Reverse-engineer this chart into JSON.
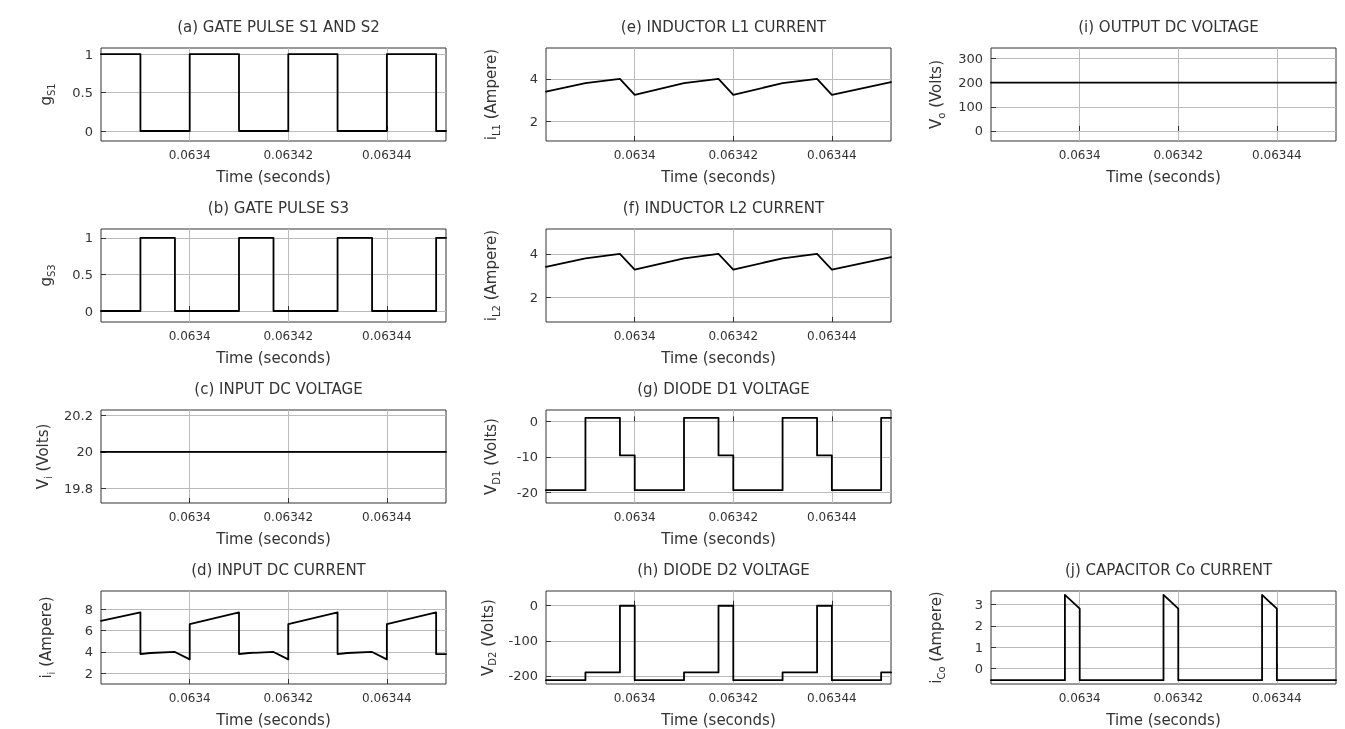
{
  "chart_data": [
    {
      "type": "line",
      "title": "(a) GATE PULSE S1 AND S2",
      "xlabel": "Time (seconds)",
      "ylabel": "g$_{S1}$",
      "color": "#000000",
      "grid": true,
      "xlim": [
        0.063382,
        0.063452
      ],
      "xticks": [
        0.0634,
        0.06342,
        0.06344
      ],
      "ylim": [
        -0.13,
        1.08
      ],
      "yticks": [
        0,
        0.5,
        1
      ],
      "x": [
        0.063382,
        0.06339,
        0.06339,
        0.0634,
        0.0634,
        0.06341,
        0.06341,
        0.06342,
        0.06342,
        0.06343,
        0.06343,
        0.06344,
        0.06344,
        0.06345,
        0.06345,
        0.063452
      ],
      "values": [
        1,
        1,
        0,
        0,
        1,
        1,
        0,
        0,
        1,
        1,
        0,
        0,
        1,
        1,
        0,
        0
      ]
    },
    {
      "type": "line",
      "title": "(b) GATE PULSE S3",
      "xlabel": "Time (seconds)",
      "ylabel": "g$_{S3}$",
      "color": "#000000",
      "grid": true,
      "xlim": [
        0.063382,
        0.063452
      ],
      "xticks": [
        0.0634,
        0.06342,
        0.06344
      ],
      "ylim": [
        -0.15,
        1.12
      ],
      "yticks": [
        0,
        0.5,
        1
      ],
      "x": [
        0.063382,
        0.06339,
        0.06339,
        0.063397,
        0.063397,
        0.06341,
        0.06341,
        0.063417,
        0.063417,
        0.06343,
        0.06343,
        0.063437,
        0.063437,
        0.06345,
        0.06345,
        0.063452
      ],
      "values": [
        0,
        0,
        1,
        1,
        0,
        0,
        1,
        1,
        0,
        0,
        1,
        1,
        0,
        0,
        1,
        1
      ]
    },
    {
      "type": "line",
      "title": "(c) INPUT DC VOLTAGE",
      "xlabel": "Time (seconds)",
      "ylabel": "V$_{i}$ (Volts)",
      "color": "#000000",
      "grid": true,
      "xlim": [
        0.063382,
        0.063452
      ],
      "xticks": [
        0.0634,
        0.06342,
        0.06344
      ],
      "ylim": [
        19.72,
        20.23
      ],
      "yticks": [
        19.8,
        20,
        20.2
      ],
      "x": [
        0.063382,
        0.063452
      ],
      "values": [
        20,
        20
      ]
    },
    {
      "type": "line",
      "title": "(d) INPUT DC CURRENT",
      "xlabel": "Time (seconds)",
      "ylabel": "i$_{i}$ (Ampere)",
      "color": "#000000",
      "grid": true,
      "xlim": [
        0.063382,
        0.063452
      ],
      "xticks": [
        0.0634,
        0.06342,
        0.06344
      ],
      "ylim": [
        1.0,
        9.7
      ],
      "yticks": [
        2,
        4,
        6,
        8
      ],
      "x": [
        0.063382,
        0.06339,
        0.06339,
        0.063392,
        0.063397,
        0.0634,
        0.0634,
        0.06341,
        0.06341,
        0.063412,
        0.063417,
        0.06342,
        0.06342,
        0.06343,
        0.06343,
        0.063432,
        0.063437,
        0.06344,
        0.06344,
        0.06345,
        0.06345,
        0.063452
      ],
      "values": [
        6.9,
        7.7,
        3.8,
        3.9,
        4.0,
        3.3,
        6.6,
        7.7,
        3.8,
        3.9,
        4.0,
        3.3,
        6.6,
        7.7,
        3.8,
        3.9,
        4.0,
        3.3,
        6.6,
        7.7,
        3.8,
        3.8
      ]
    },
    {
      "type": "line",
      "title": "(e) INDUCTOR L1 CURRENT",
      "xlabel": "Time (seconds)",
      "ylabel": "i$_{L1}$ (Ampere)",
      "color": "#000000",
      "grid": true,
      "xlim": [
        0.063382,
        0.063452
      ],
      "xticks": [
        0.0634,
        0.06342,
        0.06344
      ],
      "ylim": [
        1.07,
        5.46
      ],
      "yticks": [
        2,
        4
      ],
      "x": [
        0.063382,
        0.06339,
        0.063397,
        0.0634,
        0.06341,
        0.063417,
        0.06342,
        0.06343,
        0.063437,
        0.06344,
        0.063452
      ],
      "values": [
        3.4,
        3.8,
        4.0,
        3.25,
        3.8,
        4.0,
        3.25,
        3.8,
        4.0,
        3.25,
        3.85
      ]
    },
    {
      "type": "line",
      "title": "(f) INDUCTOR L2 CURRENT",
      "xlabel": "Time (seconds)",
      "ylabel": "i$_{L2}$ (Ampere)",
      "color": "#000000",
      "grid": true,
      "xlim": [
        0.063382,
        0.063452
      ],
      "xticks": [
        0.0634,
        0.06342,
        0.06344
      ],
      "ylim": [
        0.84,
        5.16
      ],
      "yticks": [
        2,
        4
      ],
      "x": [
        0.063382,
        0.06339,
        0.063397,
        0.0634,
        0.06341,
        0.063417,
        0.06342,
        0.06343,
        0.063437,
        0.06344,
        0.063452
      ],
      "values": [
        3.4,
        3.8,
        4.0,
        3.27,
        3.8,
        4.0,
        3.27,
        3.8,
        4.0,
        3.27,
        3.85
      ]
    },
    {
      "type": "line",
      "title": "(g) DIODE D1 VOLTAGE",
      "xlabel": "Time (seconds)",
      "ylabel": "V$_{D1}$ (Volts)",
      "color": "#000000",
      "grid": true,
      "xlim": [
        0.063382,
        0.063452
      ],
      "xticks": [
        0.0634,
        0.06342,
        0.06344
      ],
      "ylim": [
        -23,
        3.2
      ],
      "yticks": [
        -20,
        -10,
        0
      ],
      "x": [
        0.063382,
        0.06339,
        0.06339,
        0.063397,
        0.063397,
        0.0634,
        0.0634,
        0.06341,
        0.06341,
        0.063417,
        0.063417,
        0.06342,
        0.06342,
        0.06343,
        0.06343,
        0.063437,
        0.063437,
        0.06344,
        0.06344,
        0.06345,
        0.06345,
        0.063452
      ],
      "values": [
        -19.4,
        -19.4,
        1,
        1,
        -9.6,
        -9.6,
        -19.4,
        -19.4,
        1,
        1,
        -9.6,
        -9.6,
        -19.4,
        -19.4,
        1,
        1,
        -9.6,
        -9.6,
        -19.4,
        -19.4,
        1,
        1
      ]
    },
    {
      "type": "line",
      "title": "(h) DIODE D2 VOLTAGE",
      "xlabel": "Time (seconds)",
      "ylabel": "V$_{D2}$ (Volts)",
      "color": "#000000",
      "grid": true,
      "xlim": [
        0.063382,
        0.063452
      ],
      "xticks": [
        0.0634,
        0.06342,
        0.06344
      ],
      "ylim": [
        -223,
        42
      ],
      "yticks": [
        -200,
        -100,
        0
      ],
      "x": [
        0.063382,
        0.06339,
        0.06339,
        0.063397,
        0.063397,
        0.0634,
        0.0634,
        0.06341,
        0.06341,
        0.063417,
        0.063417,
        0.06342,
        0.06342,
        0.06343,
        0.06343,
        0.063437,
        0.063437,
        0.06344,
        0.06344,
        0.06345,
        0.06345,
        0.063452
      ],
      "values": [
        -212,
        -212,
        -190,
        -190,
        0,
        0,
        -212,
        -212,
        -190,
        -190,
        0,
        0,
        -212,
        -212,
        -190,
        -190,
        0,
        0,
        -212,
        -212,
        -190,
        -190
      ]
    },
    {
      "type": "line",
      "title": "(i) OUTPUT DC VOLTAGE",
      "xlabel": "Time (seconds)",
      "ylabel": "V$_{o}$ (Volts)",
      "color": "#000000",
      "grid": true,
      "xlim": [
        0.063382,
        0.063452
      ],
      "xticks": [
        0.0634,
        0.06342,
        0.06344
      ],
      "ylim": [
        -42,
        344
      ],
      "yticks": [
        0,
        100,
        200,
        300
      ],
      "x": [
        0.063382,
        0.063452
      ],
      "values": [
        200,
        200
      ]
    },
    {
      "type": "line",
      "title": "(j) CAPACITOR Co CURRENT",
      "xlabel": "Time (seconds)",
      "ylabel": "i$_{Co}$ (Ampere)",
      "color": "#000000",
      "grid": true,
      "xlim": [
        0.063382,
        0.063452
      ],
      "xticks": [
        0.0634,
        0.06342,
        0.06344
      ],
      "ylim": [
        -0.73,
        3.63
      ],
      "yticks": [
        0,
        1,
        2,
        3
      ],
      "x": [
        0.063382,
        0.063397,
        0.063397,
        0.0634,
        0.0634,
        0.063417,
        0.063417,
        0.06342,
        0.06342,
        0.063437,
        0.063437,
        0.06344,
        0.06344,
        0.063452
      ],
      "values": [
        -0.55,
        -0.55,
        3.45,
        2.8,
        -0.55,
        -0.55,
        3.45,
        2.8,
        -0.55,
        -0.55,
        3.45,
        2.8,
        -0.55,
        -0.55
      ]
    }
  ]
}
